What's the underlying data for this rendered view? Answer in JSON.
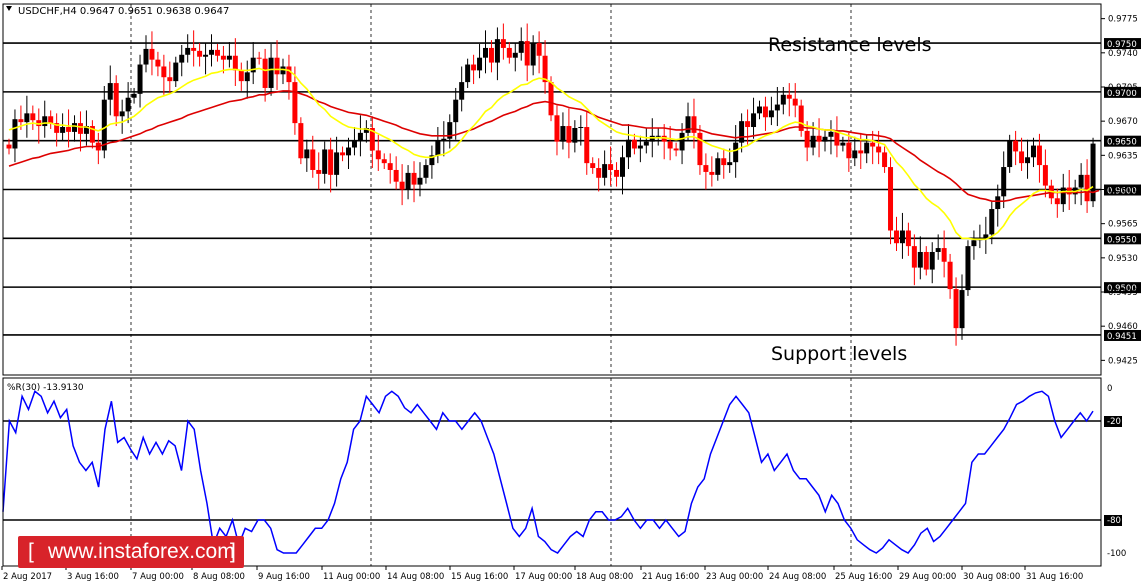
{
  "window": {
    "symbol_line": "USDCHF,H4  0.9647 0.9651 0.9638 0.9647"
  },
  "annotations": {
    "resistance": "Resistance levels",
    "support": "Support levels"
  },
  "watermark": {
    "text": "www.instaforex.com",
    "bracket_open": "[",
    "bracket_close": "]"
  },
  "colors": {
    "bull_candle": "#000000",
    "bear_candle": "#ff0000",
    "fast_ma": "#ffff00",
    "slow_ma": "#dd0000",
    "williams_r": "#0000ff",
    "watermark_bg": "#d8232a"
  },
  "chart_data": [
    {
      "type": "candlestick",
      "symbol": "USDCHF",
      "timeframe": "H4",
      "ohlc_current": {
        "open": 0.9647,
        "high": 0.9651,
        "low": 0.9638,
        "close": 0.9647
      },
      "ylim": [
        0.941,
        0.979
      ],
      "y_tick_labels": [
        "0.9775",
        "0.9740",
        "0.9705",
        "0.9670",
        "0.9635",
        "0.9600",
        "0.9565",
        "0.9530",
        "0.9495",
        "0.9460",
        "0.9425"
      ],
      "y_ticks": [
        0.9775,
        0.974,
        0.9705,
        0.967,
        0.9635,
        0.96,
        0.9565,
        0.953,
        0.9495,
        0.946,
        0.9425
      ],
      "highlighted_levels": [
        0.975,
        0.97,
        0.965,
        0.96,
        0.955,
        0.95,
        0.9451
      ],
      "highlighted_level_labels": [
        "0.9750",
        "0.9700",
        "0.9650",
        "0.9600",
        "0.9550",
        "0.9500",
        "0.9451"
      ],
      "x_tick_labels": [
        "2 Aug 2017",
        "3 Aug 16:00",
        "7 Aug 00:00",
        "8 Aug 08:00",
        "9 Aug 16:00",
        "11 Aug 00:00",
        "14 Aug 08:00",
        "15 Aug 16:00",
        "17 Aug 00:00",
        "18 Aug 08:00",
        "21 Aug 16:00",
        "23 Aug 00:00",
        "24 Aug 08:00",
        "25 Aug 16:00",
        "29 Aug 00:00",
        "30 Aug 08:00",
        "31 Aug 16:00"
      ],
      "closes": [
        0.9642,
        0.9672,
        0.9669,
        0.9678,
        0.9671,
        0.9665,
        0.9675,
        0.9668,
        0.9658,
        0.9664,
        0.9659,
        0.9668,
        0.9657,
        0.9665,
        0.9648,
        0.964,
        0.9692,
        0.9709,
        0.9675,
        0.968,
        0.9694,
        0.9698,
        0.9728,
        0.9744,
        0.9733,
        0.9726,
        0.9715,
        0.9711,
        0.973,
        0.9738,
        0.9745,
        0.9742,
        0.9736,
        0.9738,
        0.9743,
        0.9737,
        0.9733,
        0.9737,
        0.9722,
        0.9711,
        0.972,
        0.9735,
        0.9734,
        0.9704,
        0.9735,
        0.9718,
        0.9726,
        0.971,
        0.9668,
        0.9632,
        0.9641,
        0.962,
        0.9616,
        0.9641,
        0.9615,
        0.9638,
        0.9635,
        0.9643,
        0.965,
        0.9658,
        0.9663,
        0.964,
        0.9631,
        0.9627,
        0.962,
        0.9608,
        0.96,
        0.9617,
        0.9605,
        0.9612,
        0.9625,
        0.9635,
        0.965,
        0.9652,
        0.9669,
        0.9692,
        0.971,
        0.9728,
        0.9722,
        0.9735,
        0.9745,
        0.973,
        0.9754,
        0.9745,
        0.9735,
        0.974,
        0.9752,
        0.9727,
        0.975,
        0.9737,
        0.971,
        0.9676,
        0.9649,
        0.9665,
        0.9648,
        0.9663,
        0.9664,
        0.9627,
        0.9622,
        0.9612,
        0.9626,
        0.962,
        0.9613,
        0.9633,
        0.9651,
        0.9642,
        0.9645,
        0.9649,
        0.9655,
        0.9655,
        0.9649,
        0.9642,
        0.964,
        0.9658,
        0.9675,
        0.9658,
        0.9625,
        0.9618,
        0.9615,
        0.9632,
        0.9625,
        0.9628,
        0.9648,
        0.967,
        0.9664,
        0.9678,
        0.9685,
        0.9674,
        0.9681,
        0.9687,
        0.9697,
        0.9693,
        0.9686,
        0.966,
        0.9643,
        0.9655,
        0.9649,
        0.9654,
        0.9659,
        0.9645,
        0.9648,
        0.9632,
        0.964,
        0.9637,
        0.9648,
        0.9644,
        0.9638,
        0.9623,
        0.9558,
        0.9545,
        0.9558,
        0.9542,
        0.952,
        0.9536,
        0.9518,
        0.9536,
        0.954,
        0.9526,
        0.9498,
        0.9458,
        0.9497,
        0.9542,
        0.9548,
        0.955,
        0.9554,
        0.958,
        0.9593,
        0.9623,
        0.965,
        0.9639,
        0.9627,
        0.9633,
        0.9645,
        0.9625,
        0.9604,
        0.9591,
        0.9585,
        0.9602,
        0.9595,
        0.9602,
        0.9615,
        0.9588,
        0.9647
      ],
      "fast_ma": [
        0.9661,
        0.9663,
        0.9665,
        0.9667,
        0.9668,
        0.9667,
        0.9668,
        0.9668,
        0.9666,
        0.9666,
        0.9665,
        0.9665,
        0.9664,
        0.9664,
        0.9662,
        0.966,
        0.9663,
        0.9667,
        0.9668,
        0.9669,
        0.9672,
        0.9675,
        0.968,
        0.9686,
        0.969,
        0.9694,
        0.9696,
        0.9698,
        0.9701,
        0.9705,
        0.9709,
        0.9712,
        0.9714,
        0.9716,
        0.9719,
        0.972,
        0.9722,
        0.9723,
        0.9723,
        0.9722,
        0.9722,
        0.9723,
        0.9724,
        0.9722,
        0.9723,
        0.9723,
        0.9723,
        0.9722,
        0.9717,
        0.9709,
        0.9703,
        0.9695,
        0.9687,
        0.9682,
        0.9675,
        0.9671,
        0.9667,
        0.9664,
        0.9663,
        0.9662,
        0.9662,
        0.966,
        0.9657,
        0.9654,
        0.9651,
        0.9647,
        0.9643,
        0.964,
        0.9636,
        0.9634,
        0.9633,
        0.9633,
        0.9635,
        0.9636,
        0.9639,
        0.9644,
        0.9651,
        0.9659,
        0.9665,
        0.9672,
        0.968,
        0.9684,
        0.9691,
        0.9696,
        0.9699,
        0.9703,
        0.9707,
        0.9708,
        0.9712,
        0.9714,
        0.9713,
        0.971,
        0.9704,
        0.97,
        0.9695,
        0.9692,
        0.9689,
        0.9683,
        0.9677,
        0.9671,
        0.9667,
        0.9663,
        0.9659,
        0.9657,
        0.9656,
        0.9655,
        0.9654,
        0.9653,
        0.9653,
        0.9653,
        0.9653,
        0.9652,
        0.9651,
        0.9652,
        0.9654,
        0.9654,
        0.9651,
        0.9648,
        0.9645,
        0.9643,
        0.9641,
        0.9639,
        0.964,
        0.9643,
        0.9645,
        0.9649,
        0.9652,
        0.9655,
        0.9657,
        0.966,
        0.9664,
        0.9667,
        0.9669,
        0.9668,
        0.9665,
        0.9664,
        0.9662,
        0.9661,
        0.9661,
        0.9659,
        0.9657,
        0.9655,
        0.9653,
        0.9651,
        0.9651,
        0.965,
        0.9648,
        0.9646,
        0.9637,
        0.9628,
        0.9622,
        0.9614,
        0.9605,
        0.9599,
        0.9591,
        0.9586,
        0.9582,
        0.9576,
        0.9568,
        0.9556,
        0.955,
        0.955,
        0.9549,
        0.9549,
        0.9549,
        0.9552,
        0.9556,
        0.9563,
        0.9573,
        0.958,
        0.9585,
        0.959,
        0.9596,
        0.9599,
        0.9599,
        0.9598,
        0.9597,
        0.9598,
        0.9598,
        0.9598,
        0.96,
        0.9599,
        0.9603
      ],
      "slow_ma": [
        0.9624,
        0.9626,
        0.9628,
        0.963,
        0.9632,
        0.9633,
        0.9635,
        0.9637,
        0.9638,
        0.9639,
        0.964,
        0.9642,
        0.9643,
        0.9644,
        0.9644,
        0.9644,
        0.9646,
        0.9648,
        0.9649,
        0.9651,
        0.9653,
        0.9655,
        0.9657,
        0.966,
        0.9662,
        0.9665,
        0.9667,
        0.9669,
        0.9671,
        0.9673,
        0.9676,
        0.9678,
        0.968,
        0.9682,
        0.9684,
        0.9686,
        0.9688,
        0.969,
        0.9691,
        0.9692,
        0.9694,
        0.9695,
        0.9697,
        0.9697,
        0.9699,
        0.97,
        0.9701,
        0.9701,
        0.97,
        0.9698,
        0.9696,
        0.9693,
        0.969,
        0.9688,
        0.9685,
        0.9683,
        0.9681,
        0.9679,
        0.9678,
        0.9677,
        0.9676,
        0.9674,
        0.9672,
        0.967,
        0.9668,
        0.9666,
        0.9663,
        0.9661,
        0.9659,
        0.9657,
        0.9656,
        0.9655,
        0.9655,
        0.9655,
        0.9655,
        0.9656,
        0.9658,
        0.966,
        0.9662,
        0.9665,
        0.9668,
        0.967,
        0.9673,
        0.9676,
        0.9678,
        0.968,
        0.9683,
        0.9685,
        0.9688,
        0.9689,
        0.969,
        0.9689,
        0.9687,
        0.9686,
        0.9684,
        0.9683,
        0.9682,
        0.968,
        0.9677,
        0.9674,
        0.9672,
        0.967,
        0.9668,
        0.9666,
        0.9666,
        0.9665,
        0.9664,
        0.9663,
        0.9663,
        0.9663,
        0.9663,
        0.9662,
        0.9661,
        0.9661,
        0.9662,
        0.9662,
        0.9661,
        0.9659,
        0.9657,
        0.9656,
        0.9655,
        0.9654,
        0.9653,
        0.9654,
        0.9654,
        0.9655,
        0.9656,
        0.9657,
        0.9658,
        0.9659,
        0.9661,
        0.9663,
        0.9664,
        0.9664,
        0.9663,
        0.9663,
        0.9662,
        0.9661,
        0.9661,
        0.966,
        0.966,
        0.9659,
        0.9658,
        0.9657,
        0.9656,
        0.9656,
        0.9655,
        0.9654,
        0.9652,
        0.9647,
        0.9643,
        0.9639,
        0.9635,
        0.963,
        0.9626,
        0.9622,
        0.9618,
        0.9615,
        0.9611,
        0.9606,
        0.96,
        0.9595,
        0.9593,
        0.9591,
        0.959,
        0.9588,
        0.9588,
        0.9588,
        0.9589,
        0.9591,
        0.9592,
        0.9593,
        0.9594,
        0.9595,
        0.9596,
        0.9597,
        0.9597,
        0.9597,
        0.9597,
        0.9597,
        0.9597,
        0.9598,
        0.9597,
        0.9599
      ],
      "series": [
        {
          "name": "fast MA",
          "color": "#ffff00"
        },
        {
          "name": "slow MA",
          "color": "#dd0000"
        }
      ]
    },
    {
      "type": "line",
      "title": "%R(30) -13.9130",
      "ylim": [
        -100,
        0
      ],
      "y_tick_labels": [
        "0",
        "-20",
        "-80",
        "-100"
      ],
      "y_ticks": [
        0,
        -20,
        -80,
        -100
      ],
      "levels": [
        -20,
        -80
      ],
      "values": [
        -75,
        -20,
        -27,
        -5,
        -13,
        -2,
        -5,
        -15,
        -8,
        -18,
        -13,
        -35,
        -45,
        -50,
        -45,
        -60,
        -25,
        -8,
        -33,
        -30,
        -37,
        -43,
        -30,
        -40,
        -33,
        -40,
        -32,
        -35,
        -50,
        -20,
        -25,
        -50,
        -70,
        -95,
        -85,
        -90,
        -80,
        -95,
        -85,
        -87,
        -80,
        -80,
        -85,
        -98,
        -100,
        -100,
        -100,
        -95,
        -90,
        -85,
        -85,
        -80,
        -70,
        -55,
        -45,
        -25,
        -20,
        -5,
        -10,
        -15,
        -5,
        -2,
        -5,
        -12,
        -15,
        -10,
        -15,
        -20,
        -25,
        -15,
        -20,
        -20,
        -25,
        -20,
        -15,
        -20,
        -30,
        -40,
        -55,
        -70,
        -85,
        -90,
        -85,
        -73,
        -90,
        -93,
        -98,
        -100,
        -95,
        -90,
        -87,
        -90,
        -80,
        -75,
        -75,
        -80,
        -80,
        -78,
        -73,
        -80,
        -85,
        -80,
        -80,
        -85,
        -80,
        -85,
        -90,
        -87,
        -70,
        -60,
        -55,
        -40,
        -30,
        -20,
        -10,
        -5,
        -10,
        -15,
        -30,
        -45,
        -40,
        -50,
        -45,
        -40,
        -50,
        -55,
        -55,
        -60,
        -65,
        -75,
        -65,
        -70,
        -80,
        -85,
        -92,
        -95,
        -98,
        -100,
        -97,
        -92,
        -95,
        -98,
        -100,
        -95,
        -88,
        -85,
        -93,
        -90,
        -85,
        -80,
        -75,
        -70,
        -45,
        -40,
        -40,
        -35,
        -30,
        -25,
        -18,
        -10,
        -8,
        -5,
        -3,
        -2,
        -5,
        -20,
        -30,
        -25,
        -20,
        -15,
        -20,
        -14
      ]
    }
  ]
}
